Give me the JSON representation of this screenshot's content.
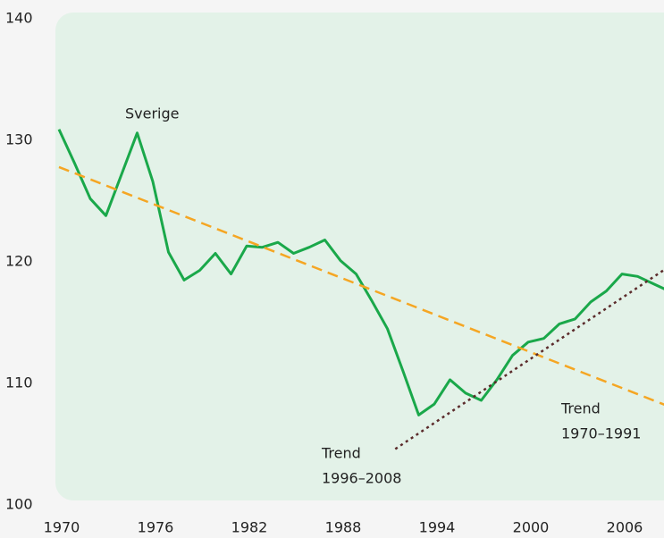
{
  "chart_data": {
    "type": "line",
    "xlim": [
      1970,
      2009
    ],
    "ylim": [
      100,
      140
    ],
    "xticks": [
      1970,
      1976,
      1982,
      1988,
      1994,
      2000,
      2006
    ],
    "yticks": [
      100,
      110,
      120,
      130,
      140
    ],
    "grid": false,
    "series": [
      {
        "name": "Sverige",
        "color": "#1aa84a",
        "style": "solid",
        "x": [
          1970,
          1971,
          1972,
          1973,
          1974,
          1975,
          1976,
          1977,
          1978,
          1979,
          1980,
          1981,
          1982,
          1983,
          1984,
          1985,
          1986,
          1987,
          1988,
          1989,
          1990,
          1991,
          1992,
          1993,
          1994,
          1995,
          1996,
          1997,
          1998,
          1999,
          2000,
          2001,
          2002,
          2003,
          2004,
          2005,
          2006,
          2007,
          2008,
          2009
        ],
        "values": [
          130.9,
          128.1,
          125.2,
          123.8,
          127.2,
          130.6,
          126.6,
          120.8,
          118.5,
          119.3,
          120.7,
          119.0,
          121.3,
          121.2,
          121.6,
          120.7,
          121.2,
          121.8,
          120.1,
          119.0,
          116.8,
          114.5,
          111.0,
          107.4,
          108.3,
          110.3,
          109.2,
          108.6,
          110.3,
          112.3,
          113.4,
          113.7,
          114.9,
          115.3,
          116.7,
          117.6,
          119.0,
          118.8,
          118.2,
          117.6
        ]
      },
      {
        "name": [
          "Trend",
          "1970–1991"
        ],
        "color": "#f5a623",
        "style": "dashed",
        "x": [
          1970,
          2009
        ],
        "values": [
          127.8,
          108.1
        ]
      },
      {
        "name": [
          "Trend",
          "1996–2008"
        ],
        "color": "#5b2b2b",
        "style": "dotted",
        "x": [
          1991.5,
          2009
        ],
        "values": [
          104.6,
          119.6
        ]
      }
    ]
  }
}
